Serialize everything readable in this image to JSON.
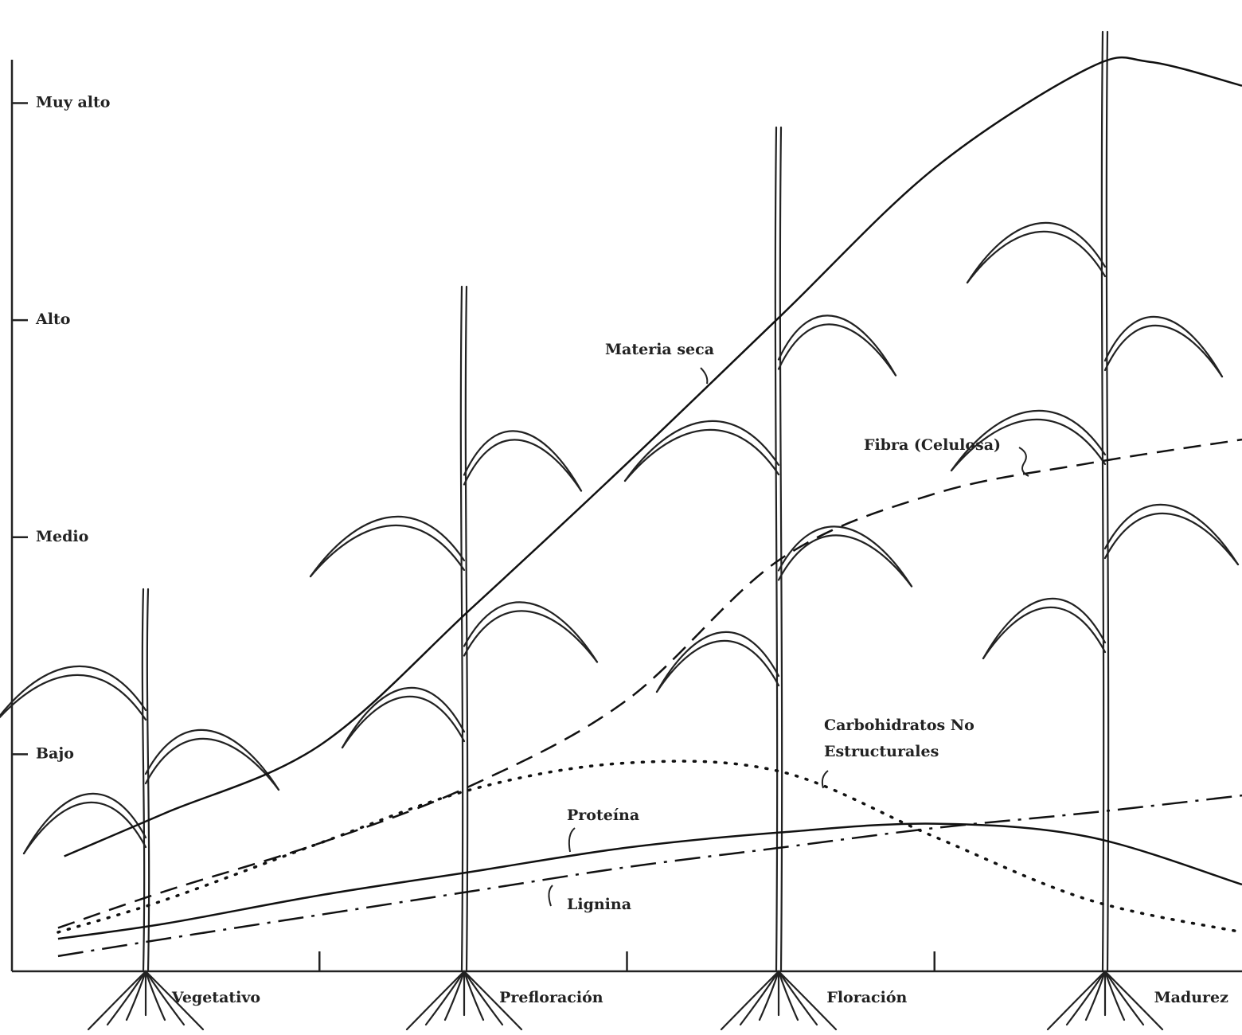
{
  "chart_data": {
    "type": "line",
    "xlim": [
      0,
      4
    ],
    "ylim": [
      0,
      4.2
    ],
    "yticks": [
      {
        "value": 1,
        "label": "Bajo"
      },
      {
        "value": 2,
        "label": "Medio"
      },
      {
        "value": 3,
        "label": "Alto"
      },
      {
        "value": 4,
        "label": "Muy alto"
      }
    ],
    "categories": [
      "Vegetativo",
      "Prefloración",
      "Floración",
      "Madurez"
    ],
    "series": [
      {
        "name": "Materia seca",
        "color": "#111111",
        "style": "solid",
        "x": [
          0.17,
          0.5,
          1,
          1.5,
          2,
          2.5,
          3,
          3.5,
          3.7,
          4
        ],
        "values": [
          0.53,
          0.73,
          1.04,
          1.68,
          2.34,
          3.02,
          3.7,
          4.16,
          4.19,
          4.08
        ]
      },
      {
        "name": "Fibra (Celulosa)",
        "color": "#111111",
        "style": "dashed",
        "x": [
          0.15,
          0.5,
          1,
          1.5,
          2,
          2.5,
          3,
          3.5,
          4
        ],
        "values": [
          0.2,
          0.37,
          0.59,
          0.86,
          1.25,
          1.9,
          2.2,
          2.34,
          2.45
        ]
      },
      {
        "name": "Carbohidratos No Estructurales",
        "color": "#111111",
        "style": "dotted",
        "x": [
          0.15,
          0.5,
          1,
          1.5,
          2,
          2.5,
          3,
          3.5,
          4
        ],
        "values": [
          0.18,
          0.33,
          0.59,
          0.84,
          0.96,
          0.92,
          0.62,
          0.33,
          0.18
        ]
      },
      {
        "name": "Proteína",
        "color": "#111111",
        "style": "solid",
        "x": [
          0.15,
          0.5,
          1,
          1.5,
          2,
          2.5,
          3,
          3.5,
          4
        ],
        "values": [
          0.15,
          0.22,
          0.35,
          0.46,
          0.57,
          0.64,
          0.68,
          0.62,
          0.4
        ]
      },
      {
        "name": "Lignina",
        "color": "#111111",
        "style": "dashdot",
        "x": [
          0.15,
          0.5,
          1,
          1.5,
          2,
          2.5,
          3,
          3.5,
          4
        ],
        "values": [
          0.07,
          0.15,
          0.26,
          0.37,
          0.48,
          0.57,
          0.66,
          0.73,
          0.81
        ]
      }
    ]
  }
}
